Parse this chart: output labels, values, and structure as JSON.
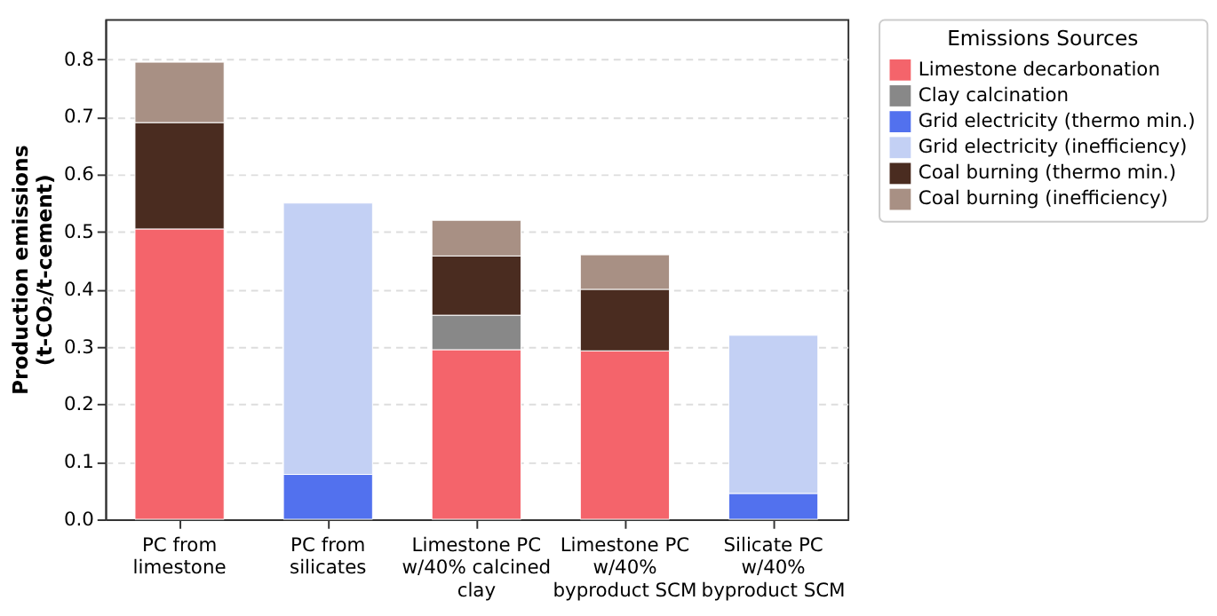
{
  "chart_data": {
    "type": "bar",
    "stacked": true,
    "ylabel": "Production emissions\n(t-CO₂/t-cement)",
    "legend_title": "Emissions Sources",
    "categories": [
      "PC from\nlimestone",
      "PC from\nsilicates",
      "Limestone PC\nw/40% calcined\nclay",
      "Limestone PC\nw/40%\nbyproduct SCM",
      "Silicate PC\nw/40%\nbyproduct SCM"
    ],
    "series": [
      {
        "name": "Limestone decarbonation",
        "color": "#f4646b",
        "values": [
          0.505,
          null,
          0.295,
          0.293,
          null
        ]
      },
      {
        "name": "Clay calcination",
        "color": "#888888",
        "values": [
          null,
          null,
          0.06,
          null,
          null
        ]
      },
      {
        "name": "Grid electricity (thermo min.)",
        "color": "#5271ee",
        "values": [
          null,
          0.078,
          null,
          null,
          0.045
        ]
      },
      {
        "name": "Grid electricity (inefficiency)",
        "color": "#c3d0f4",
        "values": [
          null,
          0.472,
          null,
          null,
          0.275
        ]
      },
      {
        "name": "Coal burning (thermo min.)",
        "color": "#4a2c20",
        "values": [
          0.185,
          null,
          0.103,
          0.107,
          null
        ]
      },
      {
        "name": "Coal burning (inefficiency)",
        "color": "#a89084",
        "values": [
          0.105,
          null,
          0.062,
          0.06,
          null
        ]
      }
    ],
    "ylim": [
      0,
      0.87
    ],
    "yticks": [
      {
        "value": 0,
        "label": "0.0"
      },
      0.1,
      0.2,
      0.3,
      0.4,
      0.5,
      0.6,
      0.7,
      0.8
    ],
    "grid": "y",
    "legend": "right"
  }
}
